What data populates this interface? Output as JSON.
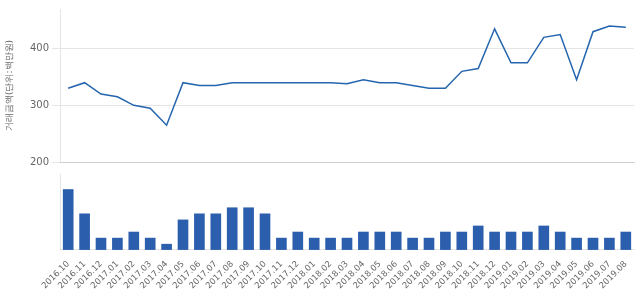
{
  "chart_data": [
    {
      "type": "line",
      "ylabel": "거래금액(단위:백만원)",
      "categories": [
        "2016.10",
        "2016.11",
        "2016.12",
        "2017.01",
        "2017.02",
        "2017.03",
        "2017.04",
        "2017.05",
        "2017.06",
        "2017.07",
        "2017.08",
        "2017.09",
        "2017.10",
        "2017.11",
        "2017.12",
        "2018.01",
        "2018.02",
        "2018.03",
        "2018.04",
        "2018.05",
        "2018.06",
        "2018.07",
        "2018.08",
        "2018.09",
        "2018.10",
        "2018.11",
        "2018.12",
        "2019.01",
        "2019.02",
        "2019.03",
        "2019.04",
        "2019.05",
        "2019.06",
        "2019.07",
        "2019.08"
      ],
      "values": [
        330,
        340,
        320,
        315,
        300,
        295,
        265,
        340,
        335,
        335,
        340,
        340,
        340,
        340,
        340,
        340,
        340,
        338,
        345,
        340,
        340,
        335,
        330,
        330,
        360,
        365,
        435,
        375,
        375,
        420,
        425,
        345,
        430,
        440,
        438
      ],
      "color": "#2565ae",
      "ylim": [
        200,
        470
      ],
      "yticks": [
        200,
        300,
        400
      ],
      "grid": true,
      "tick_labels": "y"
    },
    {
      "type": "bar",
      "categories": [
        "2016.10",
        "2016.11",
        "2016.12",
        "2017.01",
        "2017.02",
        "2017.03",
        "2017.04",
        "2017.05",
        "2017.06",
        "2017.07",
        "2017.08",
        "2017.09",
        "2017.10",
        "2017.11",
        "2017.12",
        "2018.01",
        "2018.02",
        "2018.03",
        "2018.04",
        "2018.05",
        "2018.06",
        "2018.07",
        "2018.08",
        "2018.09",
        "2018.10",
        "2018.11",
        "2018.12",
        "2019.01",
        "2019.02",
        "2019.03",
        "2019.04",
        "2019.05",
        "2019.06",
        "2019.07",
        "2019.08"
      ],
      "values": [
        10,
        6,
        2,
        2,
        3,
        2,
        1,
        5,
        6,
        6,
        7,
        7,
        6,
        2,
        3,
        2,
        2,
        2,
        3,
        3,
        3,
        2,
        2,
        3,
        3,
        4,
        3,
        3,
        3,
        4,
        3,
        2,
        2,
        2,
        3
      ],
      "color": "#2b5fad",
      "ylim": [
        0,
        12.5
      ],
      "grid": false,
      "tick_labels": "x"
    }
  ]
}
